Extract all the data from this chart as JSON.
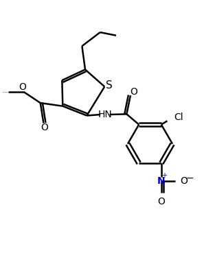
{
  "bg_color": "#ffffff",
  "line_color": "#000000",
  "bond_width": 1.8,
  "font_size": 10,
  "fig_width": 3.13,
  "fig_height": 3.82,
  "dpi": 100,
  "xlim": [
    0,
    10
  ],
  "ylim": [
    0,
    12
  ]
}
